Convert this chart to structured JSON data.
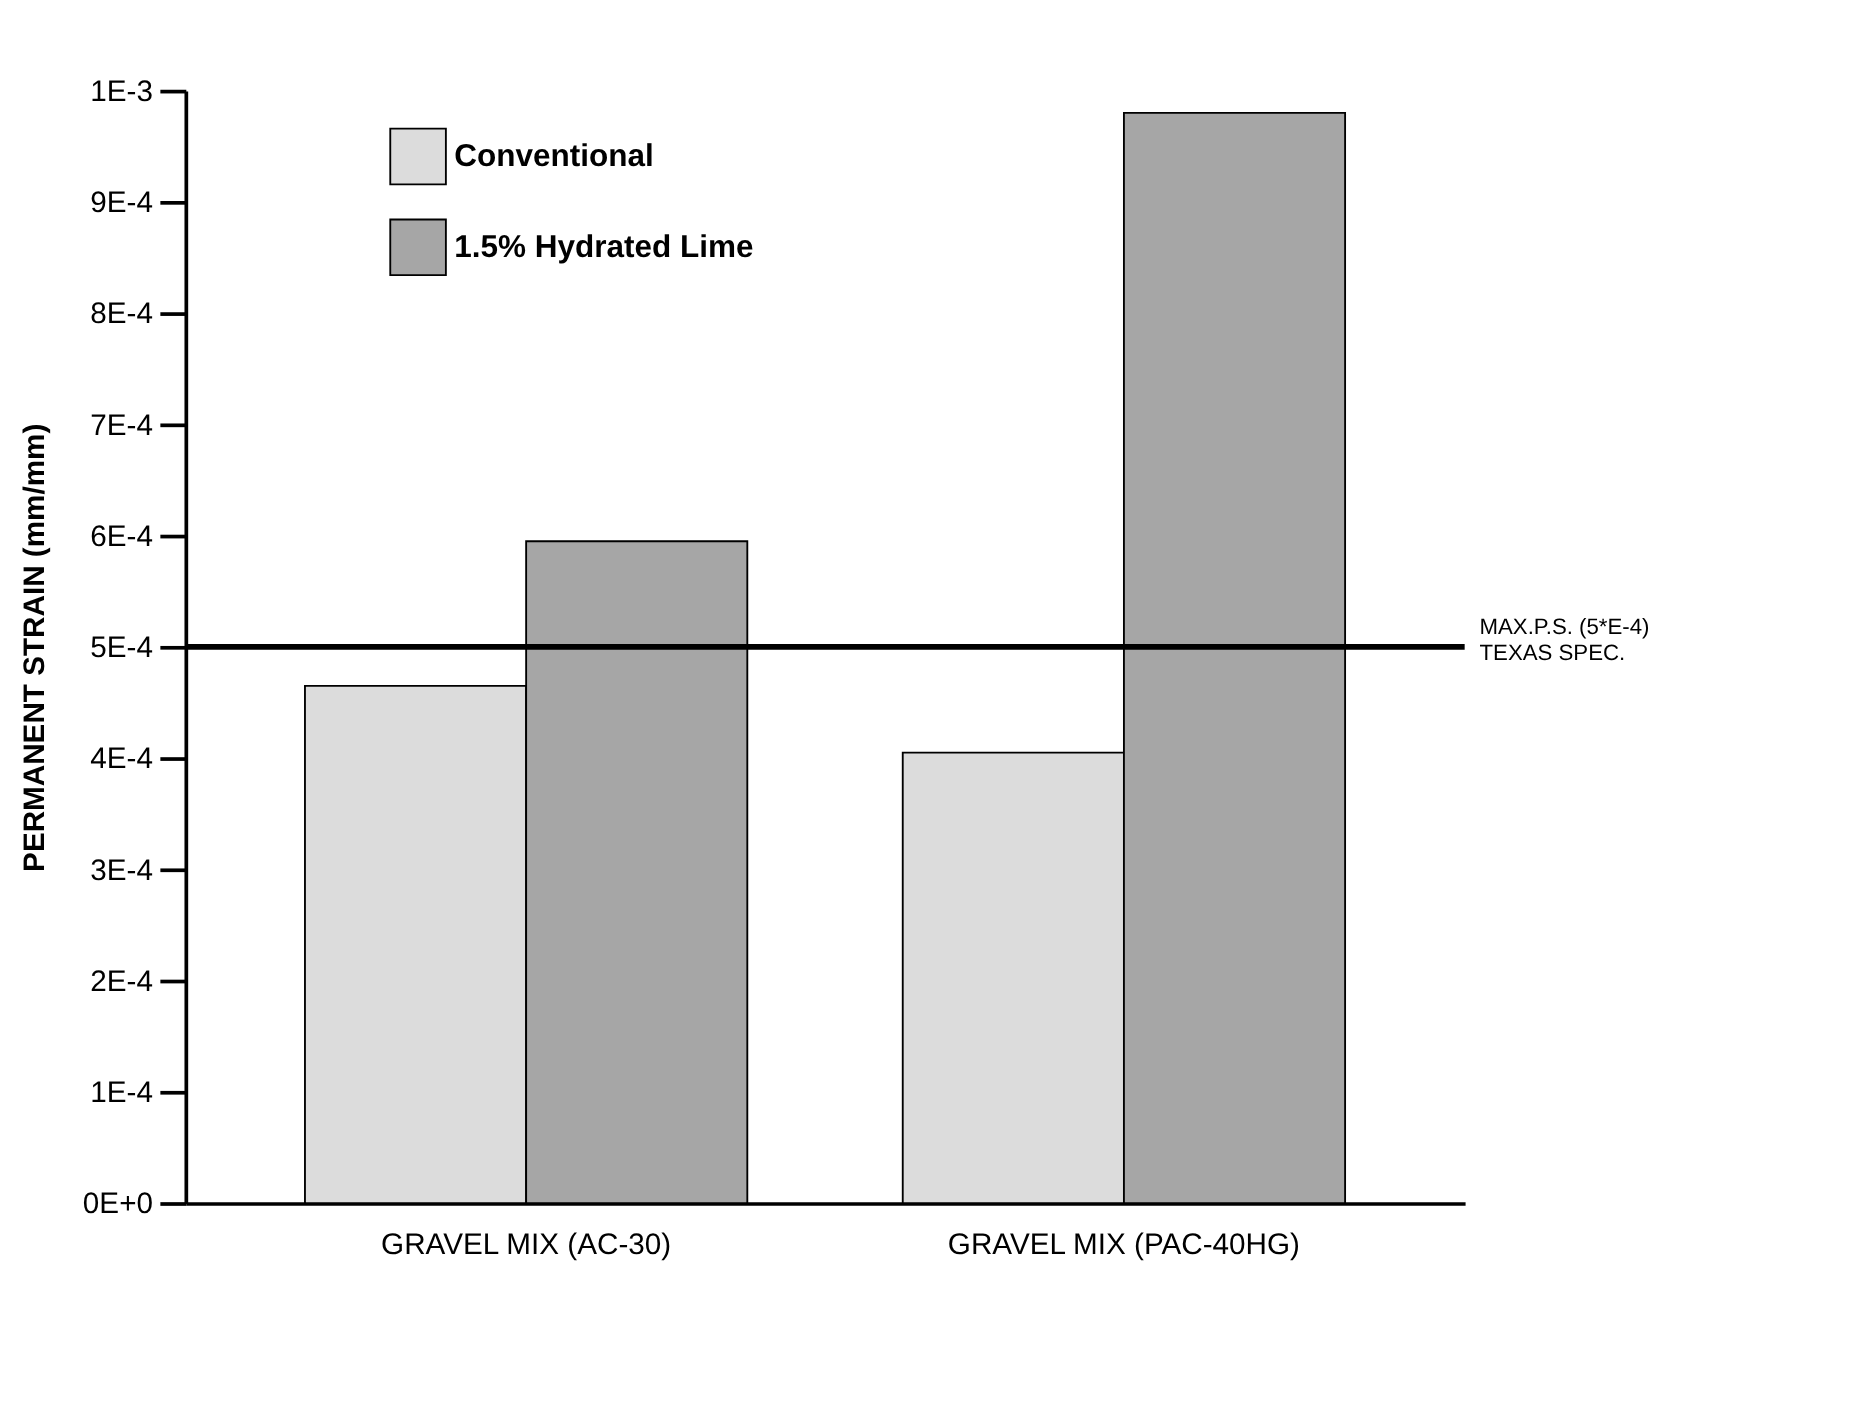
{
  "chart_data": {
    "type": "bar",
    "ylabel": "PERMANENT STRAIN (mm/mm)",
    "categories": [
      "GRAVEL MIX (AC-30)",
      "GRAVEL MIX (PAC-40HG)"
    ],
    "series": [
      {
        "name": "Conventional",
        "color": "#dcdcdc",
        "values": [
          0.000465,
          0.000405
        ]
      },
      {
        "name": "1.5% Hydrated Lime",
        "color": "#a6a6a6",
        "values": [
          0.000595,
          0.00098
        ]
      }
    ],
    "ylim": [
      0,
      0.001
    ],
    "yticks": [
      {
        "value": 0,
        "label": "0E+0"
      },
      {
        "value": 0.0001,
        "label": "1E-4"
      },
      {
        "value": 0.0002,
        "label": "2E-4"
      },
      {
        "value": 0.0003,
        "label": "3E-4"
      },
      {
        "value": 0.0004,
        "label": "4E-4"
      },
      {
        "value": 0.0005,
        "label": "5E-4"
      },
      {
        "value": 0.0006,
        "label": "6E-4"
      },
      {
        "value": 0.0007,
        "label": "7E-4"
      },
      {
        "value": 0.0008,
        "label": "8E-4"
      },
      {
        "value": 0.0009,
        "label": "9E-4"
      },
      {
        "value": 0.001,
        "label": "1E-3"
      }
    ],
    "ref_lines": [
      {
        "axis": "y",
        "value": 0.0005,
        "label": "MAX.P.S. (5*E-4)\nTEXAS SPEC.",
        "color": "#000000"
      }
    ],
    "legend": "top left",
    "grid": false
  }
}
